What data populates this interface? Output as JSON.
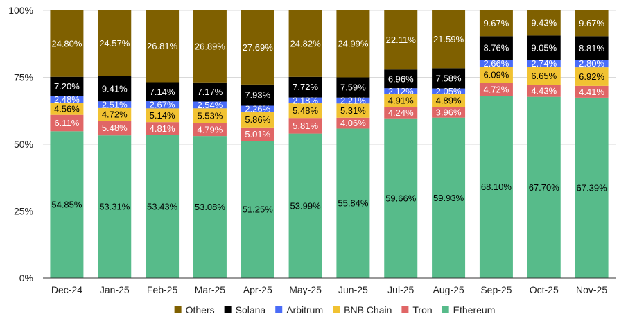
{
  "chart_data": {
    "type": "bar",
    "stacked": true,
    "percent_stacked": true,
    "categories": [
      "Dec-24",
      "Jan-25",
      "Feb-25",
      "Mar-25",
      "Apr-25",
      "May-25",
      "Jun-25",
      "Jul-25",
      "Aug-25",
      "Sep-25",
      "Oct-25",
      "Nov-25"
    ],
    "y_ticks": [
      "0%",
      "25%",
      "50%",
      "75%",
      "100%"
    ],
    "ylim": [
      0,
      100
    ],
    "grid": true,
    "legend_position": "bottom",
    "legend_order": [
      "Others",
      "Solana",
      "Arbitrum",
      "BNB Chain",
      "Tron",
      "Ethereum"
    ],
    "series": [
      {
        "name": "Ethereum",
        "color": "#57bb8a",
        "label_color": "#000000",
        "values": [
          54.85,
          53.31,
          53.43,
          53.08,
          51.25,
          53.99,
          55.84,
          59.66,
          59.93,
          68.1,
          67.7,
          67.39
        ],
        "labels": [
          "54.85%",
          "53.31%",
          "53.43%",
          "53.08%",
          "51.25%",
          "53.99%",
          "55.84%",
          "59.66%",
          "59.93%",
          "68.10%",
          "67.70%",
          "67.39%"
        ]
      },
      {
        "name": "Tron",
        "color": "#e06666",
        "label_color": "#ffffff",
        "values": [
          6.11,
          5.48,
          4.81,
          4.79,
          5.01,
          5.81,
          4.06,
          4.24,
          3.96,
          4.72,
          4.43,
          4.41
        ],
        "labels": [
          "6.11%",
          "5.48%",
          "4.81%",
          "4.79%",
          "5.01%",
          "5.81%",
          "4.06%",
          "4.24%",
          "3.96%",
          "4.72%",
          "4.43%",
          "4.41%"
        ]
      },
      {
        "name": "BNB Chain",
        "color": "#f1c232",
        "label_color": "#000000",
        "values": [
          4.56,
          4.72,
          5.14,
          5.53,
          5.86,
          5.48,
          5.31,
          4.91,
          4.89,
          6.09,
          6.65,
          6.92
        ],
        "labels": [
          "4.56%",
          "4.72%",
          "5.14%",
          "5.53%",
          "5.86%",
          "5.48%",
          "5.31%",
          "4.91%",
          "4.89%",
          "6.09%",
          "6.65%",
          "6.92%"
        ]
      },
      {
        "name": "Arbitrum",
        "color": "#4a6cf7",
        "label_color": "#ffffff",
        "values": [
          2.48,
          2.51,
          2.67,
          2.54,
          2.26,
          2.18,
          2.21,
          2.12,
          2.05,
          2.66,
          2.74,
          2.8
        ],
        "labels": [
          "2.48%",
          "2.51%",
          "2.67%",
          "2.54%",
          "2.26%",
          "2.18%",
          "2.21%",
          "2.12%",
          "2.05%",
          "2.66%",
          "2.74%",
          "2.80%"
        ]
      },
      {
        "name": "Solana",
        "color": "#000000",
        "label_color": "#ffffff",
        "values": [
          7.2,
          9.41,
          7.14,
          7.17,
          7.93,
          7.72,
          7.59,
          6.96,
          7.58,
          8.76,
          9.05,
          8.81
        ],
        "labels": [
          "7.20%",
          "9.41%",
          "7.14%",
          "7.17%",
          "7.93%",
          "7.72%",
          "7.59%",
          "6.96%",
          "7.58%",
          "8.76%",
          "9.05%",
          "8.81%"
        ]
      },
      {
        "name": "Others",
        "color": "#7f6000",
        "label_color": "#ffffff",
        "values": [
          24.8,
          24.57,
          26.81,
          26.89,
          27.69,
          24.82,
          24.99,
          22.11,
          21.59,
          9.67,
          9.43,
          9.67
        ],
        "labels": [
          "24.80%",
          "24.57%",
          "26.81%",
          "26.89%",
          "27.69%",
          "24.82%",
          "24.99%",
          "22.11%",
          "21.59%",
          "9.67%",
          "9.43%",
          "9.67%"
        ]
      }
    ]
  }
}
